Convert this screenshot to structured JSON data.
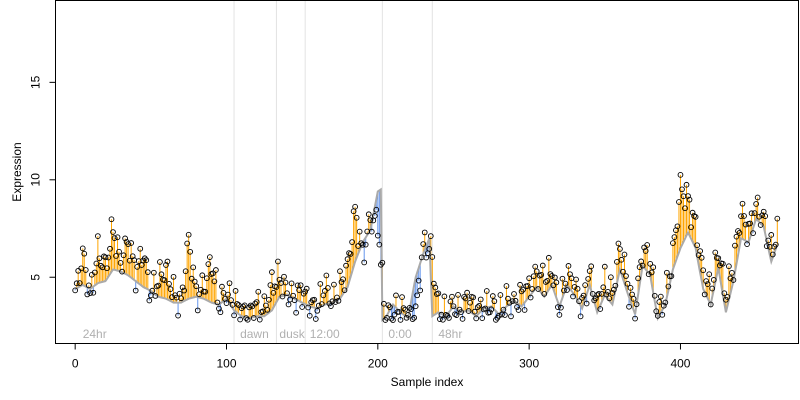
{
  "chart_data": {
    "type": "scatter",
    "xlabel": "Sample index",
    "ylabel": "Expression",
    "xlim": [
      -13,
      478
    ],
    "ylim": [
      1.6,
      19.2
    ],
    "x_ticks": [
      "0",
      "100",
      "200",
      "300",
      "400"
    ],
    "y_ticks": [
      "5",
      "10",
      "15"
    ],
    "x_tick_values": [
      0,
      100,
      200,
      300,
      400
    ],
    "y_tick_values": [
      5,
      10,
      15
    ],
    "vertical_lines": [
      105,
      133,
      152,
      203,
      236
    ],
    "annotations": [
      {
        "text": "24hr",
        "x": 3
      },
      {
        "text": "dawn",
        "x": 107
      },
      {
        "text": "dusk",
        "x": 133
      },
      {
        "text": "12:00",
        "x": 153
      },
      {
        "text": "0:00",
        "x": 205
      },
      {
        "text": "48hr",
        "x": 238
      }
    ],
    "fitted_curve_color": "#aaaaaa",
    "positive_residual_color": "#ffa500",
    "negative_residual_color": "#6495ed",
    "point_color": "#000000",
    "n_points": 465,
    "observed_anchor_points": [
      [
        0,
        4.0
      ],
      [
        5,
        6.2
      ],
      [
        10,
        4.0
      ],
      [
        15,
        6.3
      ],
      [
        20,
        5.5
      ],
      [
        25,
        7.5
      ],
      [
        30,
        5.7
      ],
      [
        35,
        6.9
      ],
      [
        40,
        5.2
      ],
      [
        45,
        6.3
      ],
      [
        50,
        4.1
      ],
      [
        55,
        4.9
      ],
      [
        60,
        5.4
      ],
      [
        65,
        4.2
      ],
      [
        70,
        3.6
      ],
      [
        75,
        6.9
      ],
      [
        80,
        4.0
      ],
      [
        85,
        4.5
      ],
      [
        90,
        5.8
      ],
      [
        95,
        3.6
      ],
      [
        100,
        4.2
      ],
      [
        105,
        3.7
      ],
      [
        110,
        3.2
      ],
      [
        115,
        3.1
      ],
      [
        120,
        3.6
      ],
      [
        125,
        3.3
      ],
      [
        130,
        4.6
      ],
      [
        135,
        5.0
      ],
      [
        140,
        4.2
      ],
      [
        145,
        3.9
      ],
      [
        150,
        4.3
      ],
      [
        155,
        3.6
      ],
      [
        160,
        3.3
      ],
      [
        165,
        4.6
      ],
      [
        170,
        3.7
      ],
      [
        175,
        4.5
      ],
      [
        180,
        5.5
      ],
      [
        185,
        8.4
      ],
      [
        190,
        6.1
      ],
      [
        195,
        8.0
      ],
      [
        200,
        7.8
      ],
      [
        205,
        2.9
      ],
      [
        210,
        3.2
      ],
      [
        215,
        3.4
      ],
      [
        220,
        3.0
      ],
      [
        225,
        3.1
      ],
      [
        230,
        6.6
      ],
      [
        235,
        6.5
      ],
      [
        240,
        3.4
      ],
      [
        245,
        3.1
      ],
      [
        250,
        3.6
      ],
      [
        255,
        3.2
      ],
      [
        260,
        4.0
      ],
      [
        265,
        3.2
      ],
      [
        270,
        3.4
      ],
      [
        275,
        3.6
      ],
      [
        280,
        3.1
      ],
      [
        285,
        3.8
      ],
      [
        290,
        3.6
      ],
      [
        295,
        4.1
      ],
      [
        300,
        4.4
      ],
      [
        305,
        5.2
      ],
      [
        310,
        4.8
      ],
      [
        315,
        5.4
      ],
      [
        320,
        3.4
      ],
      [
        325,
        5.1
      ],
      [
        330,
        4.6
      ],
      [
        335,
        3.5
      ],
      [
        340,
        5.2
      ],
      [
        345,
        3.6
      ],
      [
        350,
        4.7
      ],
      [
        355,
        4.1
      ],
      [
        360,
        6.6
      ],
      [
        365,
        4.6
      ],
      [
        370,
        3.3
      ],
      [
        375,
        6.4
      ],
      [
        380,
        5.8
      ],
      [
        385,
        3.2
      ],
      [
        390,
        3.9
      ],
      [
        395,
        6.1
      ],
      [
        400,
        9.6
      ],
      [
        405,
        9.0
      ],
      [
        410,
        7.6
      ],
      [
        415,
        5.1
      ],
      [
        420,
        4.2
      ],
      [
        425,
        6.4
      ],
      [
        430,
        4.1
      ],
      [
        435,
        5.6
      ],
      [
        440,
        8.4
      ],
      [
        445,
        7.3
      ],
      [
        450,
        8.6
      ],
      [
        455,
        8.0
      ],
      [
        460,
        6.3
      ],
      [
        465,
        7.6
      ]
    ],
    "fitted_curve_anchor_points": [
      [
        0,
        4.4
      ],
      [
        5,
        4.6
      ],
      [
        10,
        4.4
      ],
      [
        15,
        4.7
      ],
      [
        20,
        4.8
      ],
      [
        25,
        5.4
      ],
      [
        30,
        5.3
      ],
      [
        35,
        5.1
      ],
      [
        40,
        4.8
      ],
      [
        45,
        4.5
      ],
      [
        50,
        4.3
      ],
      [
        55,
        4.0
      ],
      [
        60,
        3.9
      ],
      [
        65,
        3.7
      ],
      [
        70,
        3.7
      ],
      [
        75,
        3.9
      ],
      [
        80,
        4.0
      ],
      [
        85,
        3.9
      ],
      [
        90,
        3.7
      ],
      [
        95,
        3.6
      ],
      [
        100,
        3.9
      ],
      [
        105,
        3.3
      ],
      [
        110,
        3.0
      ],
      [
        115,
        2.9
      ],
      [
        120,
        3.0
      ],
      [
        125,
        3.0
      ],
      [
        130,
        3.3
      ],
      [
        135,
        4.0
      ],
      [
        140,
        4.1
      ],
      [
        145,
        3.9
      ],
      [
        150,
        3.7
      ],
      [
        155,
        3.5
      ],
      [
        160,
        3.4
      ],
      [
        165,
        3.6
      ],
      [
        170,
        3.7
      ],
      [
        175,
        3.9
      ],
      [
        180,
        4.5
      ],
      [
        185,
        5.8
      ],
      [
        190,
        6.8
      ],
      [
        195,
        7.4
      ],
      [
        200,
        9.4
      ],
      [
        202,
        9.5
      ],
      [
        203,
        2.8
      ],
      [
        205,
        2.9
      ],
      [
        210,
        3.6
      ],
      [
        215,
        3.2
      ],
      [
        220,
        2.9
      ],
      [
        225,
        5.0
      ],
      [
        230,
        6.2
      ],
      [
        234,
        7.0
      ],
      [
        236,
        3.0
      ],
      [
        240,
        3.2
      ],
      [
        245,
        3.0
      ],
      [
        250,
        3.5
      ],
      [
        255,
        3.2
      ],
      [
        260,
        3.3
      ],
      [
        265,
        3.0
      ],
      [
        270,
        3.4
      ],
      [
        275,
        3.5
      ],
      [
        280,
        3.1
      ],
      [
        285,
        3.5
      ],
      [
        290,
        3.8
      ],
      [
        295,
        3.5
      ],
      [
        300,
        4.0
      ],
      [
        305,
        4.5
      ],
      [
        310,
        4.0
      ],
      [
        315,
        4.6
      ],
      [
        320,
        3.5
      ],
      [
        325,
        4.6
      ],
      [
        330,
        4.1
      ],
      [
        335,
        3.4
      ],
      [
        340,
        4.6
      ],
      [
        345,
        3.2
      ],
      [
        350,
        4.1
      ],
      [
        355,
        3.6
      ],
      [
        360,
        5.4
      ],
      [
        365,
        4.2
      ],
      [
        370,
        3.1
      ],
      [
        375,
        5.6
      ],
      [
        380,
        5.1
      ],
      [
        385,
        2.9
      ],
      [
        390,
        3.6
      ],
      [
        395,
        5.4
      ],
      [
        400,
        6.5
      ],
      [
        405,
        7.3
      ],
      [
        410,
        6.5
      ],
      [
        415,
        4.4
      ],
      [
        420,
        3.6
      ],
      [
        425,
        5.5
      ],
      [
        430,
        3.2
      ],
      [
        435,
        4.8
      ],
      [
        440,
        7.0
      ],
      [
        445,
        6.8
      ],
      [
        450,
        8.0
      ],
      [
        455,
        7.6
      ],
      [
        460,
        5.8
      ],
      [
        465,
        6.9
      ]
    ]
  }
}
